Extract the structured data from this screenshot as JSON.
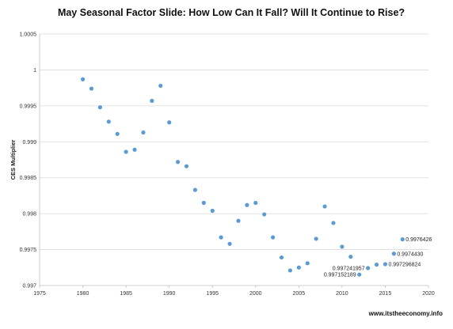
{
  "chart_data": {
    "type": "scatter",
    "title": "May  Seasonal Factor Slide: How Low Can It Fall? Will It Continue to Rise?",
    "xlabel": "",
    "ylabel": "CES Multiplier",
    "xlim": [
      1975,
      2020
    ],
    "ylim": [
      0.997,
      1.0005
    ],
    "x_ticks": [
      "1975",
      "1980",
      "1985",
      "1990",
      "1995",
      "2000",
      "2005",
      "2010",
      "2015",
      "2020"
    ],
    "y_ticks": [
      "0.997",
      "0.9975",
      "0.998",
      "0.9985",
      "0.999",
      "0.9995",
      "1",
      "1.0005"
    ],
    "grid": true,
    "marker_color": "#5b9bd5",
    "points": [
      {
        "x": 1980,
        "y": 0.99987
      },
      {
        "x": 1981,
        "y": 0.99974
      },
      {
        "x": 1982,
        "y": 0.99948
      },
      {
        "x": 1983,
        "y": 0.99928
      },
      {
        "x": 1984,
        "y": 0.99911
      },
      {
        "x": 1985,
        "y": 0.99886
      },
      {
        "x": 1986,
        "y": 0.99889
      },
      {
        "x": 1987,
        "y": 0.99913
      },
      {
        "x": 1988,
        "y": 0.99957
      },
      {
        "x": 1989,
        "y": 0.99978
      },
      {
        "x": 1990,
        "y": 0.99927
      },
      {
        "x": 1991,
        "y": 0.99872
      },
      {
        "x": 1992,
        "y": 0.99866
      },
      {
        "x": 1993,
        "y": 0.99833
      },
      {
        "x": 1994,
        "y": 0.99815
      },
      {
        "x": 1995,
        "y": 0.99804
      },
      {
        "x": 1996,
        "y": 0.99767
      },
      {
        "x": 1997,
        "y": 0.99758
      },
      {
        "x": 1998,
        "y": 0.9979
      },
      {
        "x": 1999,
        "y": 0.99812
      },
      {
        "x": 2000,
        "y": 0.99815
      },
      {
        "x": 2001,
        "y": 0.99799
      },
      {
        "x": 2002,
        "y": 0.99767
      },
      {
        "x": 2003,
        "y": 0.99739
      },
      {
        "x": 2004,
        "y": 0.99721
      },
      {
        "x": 2005,
        "y": 0.99725
      },
      {
        "x": 2006,
        "y": 0.99731
      },
      {
        "x": 2007,
        "y": 0.99765
      },
      {
        "x": 2008,
        "y": 0.9981
      },
      {
        "x": 2009,
        "y": 0.99787
      },
      {
        "x": 2010,
        "y": 0.99754
      },
      {
        "x": 2011,
        "y": 0.9974
      },
      {
        "x": 2012,
        "y": 0.997152189,
        "label": "0.997152189"
      },
      {
        "x": 2013,
        "y": 0.997241957,
        "label": "0.997241957"
      },
      {
        "x": 2014,
        "y": 0.99729
      },
      {
        "x": 2015,
        "y": 0.997296824,
        "label": "0.997296824"
      },
      {
        "x": 2016,
        "y": 0.997443,
        "label": "0.9974430"
      },
      {
        "x": 2017,
        "y": 0.9976426,
        "label": "0.9976426"
      }
    ]
  },
  "credit": "www.itstheeconomy.info"
}
